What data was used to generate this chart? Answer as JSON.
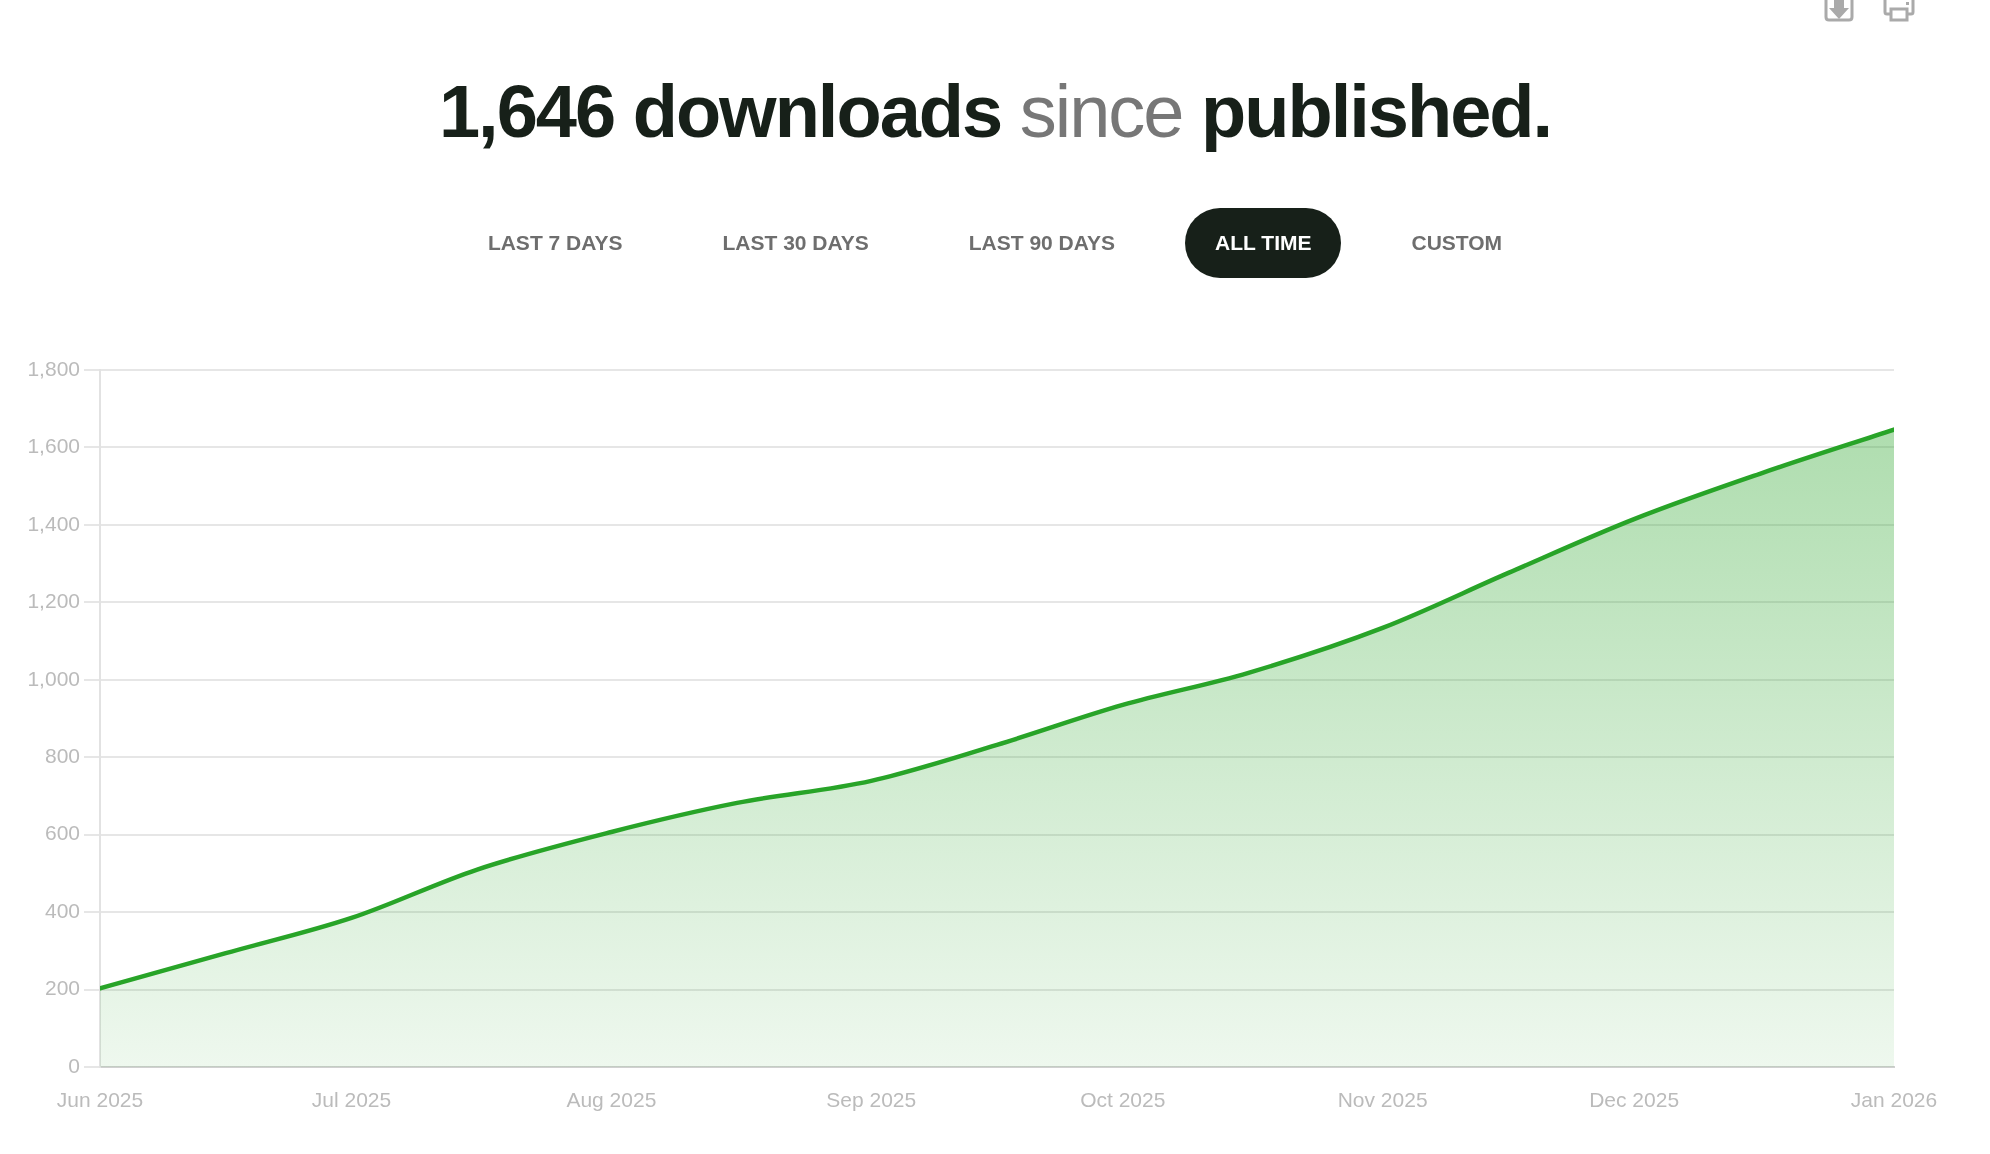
{
  "chart_data": {
    "type": "area",
    "title": "1,646 downloads since published.",
    "annotations": [
      "LAST 7 DAYS",
      "LAST 30 DAYS",
      "LAST 90 DAYS",
      "ALL TIME",
      "CUSTOM"
    ],
    "x": [
      "2025-06-01",
      "2025-06-16",
      "2025-07-01",
      "2025-07-16",
      "2025-08-01",
      "2025-08-16",
      "2025-09-01",
      "2025-09-16",
      "2025-10-01",
      "2025-10-16",
      "2025-11-01",
      "2025-11-16",
      "2025-12-01",
      "2025-12-16",
      "2026-01-01"
    ],
    "values": [
      203,
      294,
      385,
      510,
      607,
      682,
      739,
      832,
      935,
      1018,
      1134,
      1276,
      1415,
      1532,
      1646
    ],
    "color": "#28a428",
    "xlim": [
      "2025-06-01",
      "2026-01-01"
    ],
    "xticks": [
      {
        "value": "2025-06-01",
        "label": "Jun 2025"
      },
      {
        "value": "2025-07-01",
        "label": "Jul 2025"
      },
      {
        "value": "2025-08-01",
        "label": "Aug 2025"
      },
      {
        "value": "2025-09-01",
        "label": "Sep 2025"
      },
      {
        "value": "2025-10-01",
        "label": "Oct 2025"
      },
      {
        "value": "2025-11-01",
        "label": "Nov 2025"
      },
      {
        "value": "2025-12-01",
        "label": "Dec 2025"
      },
      {
        "value": "2026-01-01",
        "label": "Jan 2026"
      }
    ],
    "ylim": [
      0,
      1800
    ],
    "yticks": [
      0,
      200,
      400,
      600,
      800,
      {
        "value": 1000,
        "label": "1,000"
      },
      {
        "value": 1200,
        "label": "1,200"
      },
      {
        "value": 1400,
        "label": "1,400"
      },
      {
        "value": 1600,
        "label": "1,600"
      },
      {
        "value": 1800,
        "label": "1,800"
      }
    ],
    "grid": "y"
  }
}
